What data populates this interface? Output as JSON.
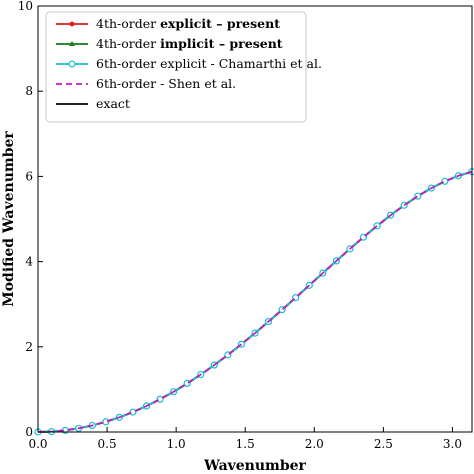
{
  "chart_data": {
    "type": "line",
    "title": "",
    "xlabel": "Wavenumber",
    "ylabel": "Modified Wavenumber",
    "xlim": [
      0,
      3.14159
    ],
    "ylim": [
      0,
      10
    ],
    "x_ticks": [
      "0.0",
      "0.5",
      "1.0",
      "1.5",
      "2.0",
      "2.5",
      "3.0"
    ],
    "y_ticks": [
      "0",
      "2",
      "4",
      "6",
      "8",
      "10"
    ],
    "x_tick_values": [
      0,
      0.5,
      1.0,
      1.5,
      2.0,
      2.5,
      3.0
    ],
    "y_tick_values": [
      0,
      2,
      4,
      6,
      8,
      10
    ],
    "grid": false,
    "legend_position": "top-left",
    "x": [
      0.0,
      0.0982,
      0.1963,
      0.2945,
      0.3927,
      0.4909,
      0.589,
      0.6872,
      0.7854,
      0.8836,
      0.9817,
      1.0799,
      1.1781,
      1.2763,
      1.3744,
      1.4726,
      1.5708,
      1.669,
      1.7671,
      1.8653,
      1.9635,
      2.0617,
      2.1598,
      2.258,
      2.3562,
      2.4544,
      2.5525,
      2.6507,
      2.7489,
      2.8471,
      2.9452,
      3.0434,
      3.1416
    ],
    "series": [
      {
        "name": "4th-order explicit – present",
        "legend_prefix": "4th-order ",
        "legend_bold": "explicit",
        "legend_suffix": " – present",
        "legend_suffix_bold": true,
        "color": "#e41a1c",
        "style": "solid",
        "marker": "dot",
        "values": [
          0.0,
          0.0096,
          0.0385,
          0.0866,
          0.1538,
          0.2399,
          0.3448,
          0.4682,
          0.6099,
          0.7693,
          0.9459,
          1.1392,
          1.3483,
          1.5723,
          1.8101,
          2.0604,
          2.3217,
          2.5924,
          2.8707,
          3.1545,
          3.4416,
          3.7297,
          4.0163,
          4.2985,
          4.5734,
          4.838,
          5.0888,
          5.3225,
          5.5356,
          5.7244,
          5.8853,
          6.015,
          6.1102
        ]
      },
      {
        "name": "4th-order implicit – present",
        "legend_prefix": "4th-order ",
        "legend_bold": "implicit",
        "legend_suffix": " – present",
        "legend_suffix_bold": true,
        "color": "#1a7a1a",
        "style": "solid",
        "marker": "star",
        "values": [
          0.0,
          0.0096,
          0.0385,
          0.0866,
          0.1538,
          0.2399,
          0.3448,
          0.4682,
          0.6099,
          0.7693,
          0.9459,
          1.1392,
          1.3483,
          1.5723,
          1.8101,
          2.0604,
          2.3217,
          2.5924,
          2.8707,
          3.1545,
          3.4416,
          3.7297,
          4.0163,
          4.2985,
          4.5734,
          4.838,
          5.0888,
          5.3225,
          5.5356,
          5.7244,
          5.8853,
          6.015,
          6.1102
        ]
      },
      {
        "name": "6th-order explicit - Chamarthi et al.",
        "legend_prefix": "6th-order explicit - Chamarthi et al.",
        "legend_bold": "",
        "legend_suffix": "",
        "legend_suffix_bold": false,
        "color": "#17becf",
        "style": "solid",
        "marker": "circle",
        "values": [
          0.0,
          0.0096,
          0.0385,
          0.0866,
          0.1538,
          0.2399,
          0.3448,
          0.4682,
          0.6099,
          0.7693,
          0.9459,
          1.1392,
          1.3483,
          1.5723,
          1.8101,
          2.0604,
          2.3217,
          2.5924,
          2.8707,
          3.1545,
          3.4416,
          3.7297,
          4.0163,
          4.2985,
          4.5734,
          4.838,
          5.0888,
          5.3225,
          5.5356,
          5.7244,
          5.8853,
          6.015,
          6.1102
        ]
      },
      {
        "name": "6th-order - Shen et al.",
        "legend_prefix": "6th-order - Shen et al.",
        "legend_bold": "",
        "legend_suffix": "",
        "legend_suffix_bold": false,
        "color": "#c020c0",
        "style": "dashed",
        "marker": "none",
        "values": [
          0.0,
          0.0096,
          0.0385,
          0.0866,
          0.1538,
          0.2399,
          0.3448,
          0.4682,
          0.6099,
          0.7693,
          0.9459,
          1.1392,
          1.3483,
          1.5723,
          1.8101,
          2.0604,
          2.3217,
          2.5924,
          2.8707,
          3.1545,
          3.4416,
          3.7297,
          4.0163,
          4.2985,
          4.5734,
          4.838,
          5.0888,
          5.3225,
          5.5356,
          5.7244,
          5.8853,
          6.015,
          6.1102
        ]
      },
      {
        "name": "exact",
        "legend_prefix": "exact",
        "legend_bold": "",
        "legend_suffix": "",
        "legend_suffix_bold": false,
        "color": "#000000",
        "style": "solid",
        "marker": "none",
        "values": [
          0.0,
          0.0096,
          0.0385,
          0.0866,
          0.1538,
          0.2399,
          0.3448,
          0.4682,
          0.6099,
          0.7693,
          0.9459,
          1.1392,
          1.3483,
          1.5723,
          1.8101,
          2.0604,
          2.3217,
          2.5924,
          2.8707,
          3.1545,
          3.4416,
          3.7297,
          4.0163,
          4.2985,
          4.5734,
          4.838,
          5.0888,
          5.3225,
          5.5356,
          5.7244,
          5.8853,
          6.015,
          6.1102
        ]
      }
    ]
  }
}
